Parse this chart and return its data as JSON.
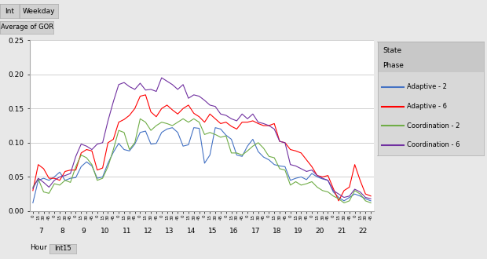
{
  "filter_label1": "Int",
  "filter_label2": "Weekday",
  "gor_label": "Average of GOR",
  "xlabel": "Hour",
  "xlabel2": "Int15",
  "ylim": [
    0.0,
    0.25
  ],
  "yticks": [
    0.0,
    0.05,
    0.1,
    0.15,
    0.2,
    0.25
  ],
  "hours": [
    7,
    8,
    9,
    10,
    11,
    12,
    13,
    14,
    15,
    16,
    17,
    18,
    19,
    20,
    21,
    22
  ],
  "intervals_per_hour": 4,
  "legend_state": "State",
  "legend_phase": "Phase",
  "legend_entries": [
    "Adaptive - 2",
    "Adaptive - 6",
    "Coordination - 2",
    "Coordination - 6"
  ],
  "line_colors": [
    "#4472C4",
    "#FF0000",
    "#70AD47",
    "#7030A0"
  ],
  "adaptive2": [
    0.012,
    0.045,
    0.048,
    0.045,
    0.05,
    0.057,
    0.045,
    0.048,
    0.049,
    0.065,
    0.072,
    0.066,
    0.048,
    0.05,
    0.07,
    0.086,
    0.099,
    0.09,
    0.088,
    0.098,
    0.115,
    0.117,
    0.098,
    0.099,
    0.115,
    0.12,
    0.122,
    0.115,
    0.095,
    0.097,
    0.122,
    0.121,
    0.07,
    0.082,
    0.122,
    0.12,
    0.111,
    0.105,
    0.082,
    0.08,
    0.095,
    0.105,
    0.087,
    0.079,
    0.075,
    0.068,
    0.066,
    0.065,
    0.045,
    0.048,
    0.05,
    0.046,
    0.055,
    0.05,
    0.047,
    0.045,
    0.028,
    0.02,
    0.015,
    0.02,
    0.025,
    0.022,
    0.018,
    0.015
  ],
  "adaptive6": [
    0.03,
    0.068,
    0.062,
    0.048,
    0.048,
    0.045,
    0.058,
    0.06,
    0.06,
    0.085,
    0.09,
    0.088,
    0.06,
    0.063,
    0.1,
    0.105,
    0.13,
    0.134,
    0.14,
    0.15,
    0.168,
    0.17,
    0.145,
    0.138,
    0.15,
    0.155,
    0.148,
    0.142,
    0.15,
    0.155,
    0.143,
    0.138,
    0.13,
    0.142,
    0.135,
    0.128,
    0.13,
    0.124,
    0.12,
    0.13,
    0.13,
    0.132,
    0.128,
    0.125,
    0.125,
    0.128,
    0.102,
    0.1,
    0.09,
    0.088,
    0.085,
    0.075,
    0.065,
    0.052,
    0.05,
    0.052,
    0.033,
    0.015,
    0.03,
    0.035,
    0.068,
    0.045,
    0.025,
    0.022
  ],
  "coordination2": [
    0.035,
    0.047,
    0.028,
    0.026,
    0.04,
    0.038,
    0.045,
    0.042,
    0.065,
    0.082,
    0.078,
    0.068,
    0.045,
    0.048,
    0.065,
    0.09,
    0.118,
    0.115,
    0.09,
    0.1,
    0.135,
    0.13,
    0.118,
    0.125,
    0.13,
    0.128,
    0.125,
    0.13,
    0.135,
    0.13,
    0.135,
    0.13,
    0.112,
    0.115,
    0.112,
    0.108,
    0.11,
    0.085,
    0.085,
    0.082,
    0.088,
    0.095,
    0.1,
    0.092,
    0.08,
    0.078,
    0.062,
    0.06,
    0.038,
    0.043,
    0.038,
    0.04,
    0.043,
    0.035,
    0.03,
    0.028,
    0.022,
    0.018,
    0.012,
    0.015,
    0.03,
    0.025,
    0.015,
    0.012
  ],
  "coordination6": [
    0.033,
    0.048,
    0.042,
    0.035,
    0.045,
    0.05,
    0.052,
    0.055,
    0.08,
    0.098,
    0.095,
    0.09,
    0.098,
    0.1,
    0.132,
    0.16,
    0.185,
    0.188,
    0.182,
    0.178,
    0.187,
    0.177,
    0.178,
    0.175,
    0.195,
    0.19,
    0.185,
    0.178,
    0.185,
    0.165,
    0.17,
    0.168,
    0.162,
    0.155,
    0.153,
    0.142,
    0.14,
    0.135,
    0.132,
    0.142,
    0.135,
    0.142,
    0.13,
    0.128,
    0.125,
    0.12,
    0.102,
    0.1,
    0.068,
    0.066,
    0.062,
    0.058,
    0.06,
    0.052,
    0.048,
    0.045,
    0.03,
    0.025,
    0.02,
    0.022,
    0.032,
    0.028,
    0.02,
    0.018
  ],
  "bg_color": "#E8E8E8",
  "plot_bg": "#FFFFFF",
  "grid_color": "#BEBEBE",
  "legend_bg": "#D8D8D8",
  "tab_bg": "#D0D0D0"
}
